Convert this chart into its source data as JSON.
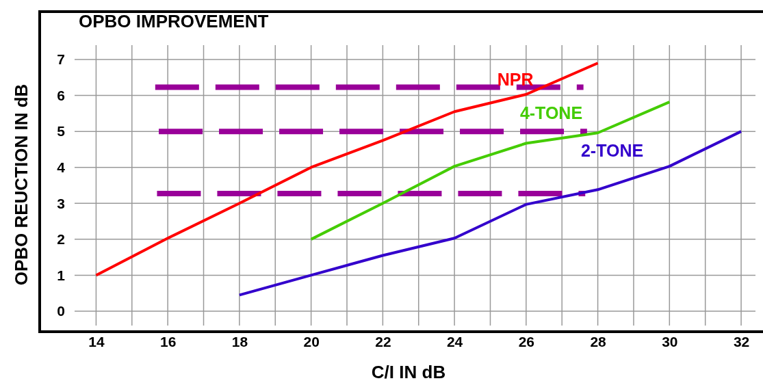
{
  "chart_data": {
    "type": "line",
    "title": "OPBO IMPROVEMENT",
    "xlabel": "C/I IN dB",
    "ylabel": "OPBO REUCTION IN dB",
    "xlim": [
      13.4,
      32.4
    ],
    "ylim": [
      -0.4,
      7.4
    ],
    "xticks": [
      14,
      {
        "value": 15,
        "label": null
      },
      16,
      {
        "value": 17,
        "label": null
      },
      18,
      {
        "value": 19,
        "label": null
      },
      20,
      {
        "value": 21,
        "label": null
      },
      22,
      {
        "value": 23,
        "label": null
      },
      24,
      {
        "value": 25,
        "label": null
      },
      26,
      {
        "value": 27,
        "label": null
      },
      28,
      {
        "value": 29,
        "label": null
      },
      30,
      {
        "value": 31,
        "label": null
      },
      32
    ],
    "yticks": [
      0,
      1,
      2,
      3,
      4,
      5,
      6,
      7
    ],
    "grid": true,
    "legend": false,
    "marker": "none",
    "series": [
      {
        "name": "NPR",
        "color": "#ff0000",
        "x": [
          14,
          16,
          18,
          20,
          22,
          24,
          26,
          28
        ],
        "values": [
          1,
          2.03,
          3,
          4,
          4.75,
          5.55,
          6.03,
          6.9
        ]
      },
      {
        "name": "4-TONE",
        "color": "#44cc00",
        "x": [
          20,
          22,
          24,
          26,
          28,
          30
        ],
        "values": [
          2,
          3,
          4.03,
          4.67,
          4.96,
          5.82
        ]
      },
      {
        "name": "2-TONE",
        "color": "#3300cc",
        "x": [
          18,
          20,
          22,
          24,
          26,
          28,
          30,
          32
        ],
        "values": [
          0.45,
          1,
          1.55,
          2.03,
          2.97,
          3.38,
          4.03,
          5
        ]
      },
      {
        "color": "#990099",
        "line_style": "dashed",
        "x": [
          15.65,
          27.6
        ],
        "values": [
          6.23,
          6.23
        ]
      },
      {
        "color": "#990099",
        "line_style": "dashed",
        "x": [
          15.75,
          27.7
        ],
        "values": [
          5,
          5
        ]
      },
      {
        "color": "#990099",
        "line_style": "dashed",
        "x": [
          15.7,
          27.65
        ],
        "values": [
          3.27,
          3.27
        ]
      }
    ]
  }
}
